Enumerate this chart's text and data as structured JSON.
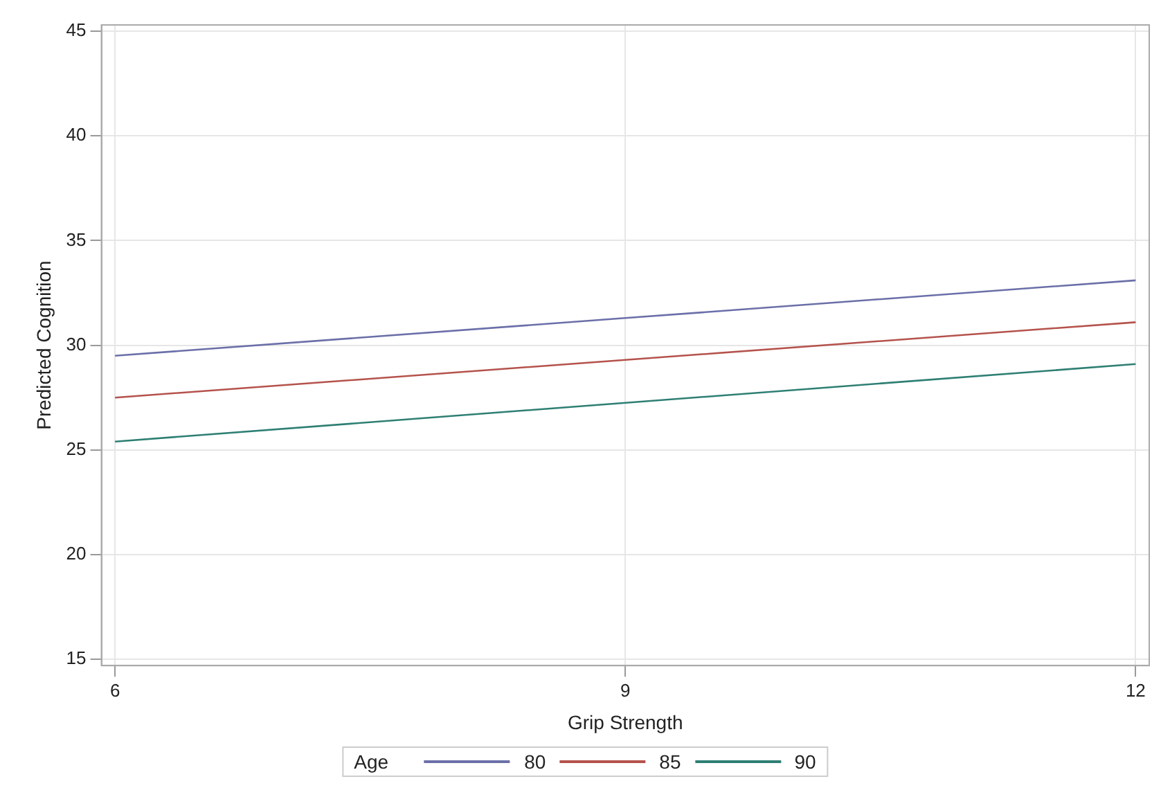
{
  "chart_data": {
    "type": "line",
    "xlabel": "Grip Strength",
    "ylabel": "Predicted Cognition",
    "legend_title": "Age",
    "x": [
      6,
      9,
      12
    ],
    "xlim": [
      5.92,
      12.08
    ],
    "xticks": [
      6,
      9,
      12
    ],
    "ylim": [
      14.7,
      45.3
    ],
    "yticks": [
      15,
      20,
      25,
      30,
      35,
      40,
      45
    ],
    "series": [
      {
        "name": "80",
        "color": "#6b6fa8",
        "values": [
          29.5,
          31.3,
          33.1
        ]
      },
      {
        "name": "85",
        "color": "#b5524c",
        "values": [
          27.5,
          29.3,
          31.1
        ]
      },
      {
        "name": "90",
        "color": "#2e7f73",
        "values": [
          25.4,
          27.25,
          29.1
        ]
      }
    ],
    "grid": true,
    "legend": "bottom",
    "marker": "none",
    "line_style": "solid"
  }
}
